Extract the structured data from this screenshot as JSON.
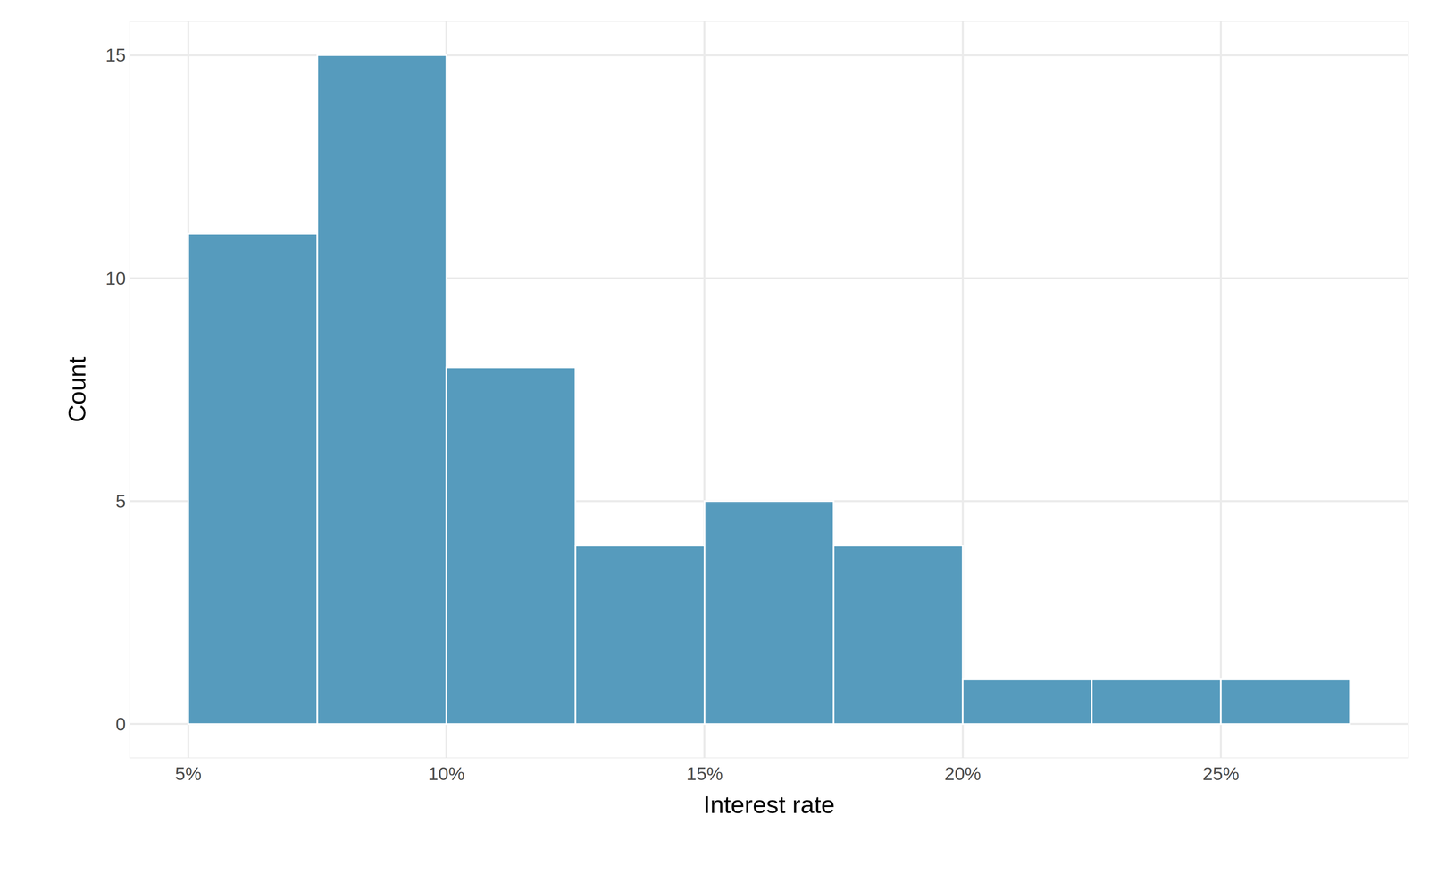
{
  "chart_data": {
    "type": "histogram",
    "bins": [
      5,
      7.5,
      10,
      12.5,
      15,
      17.5,
      20,
      22.5,
      25,
      27.5
    ],
    "values": [
      11,
      15,
      8,
      4,
      5,
      4,
      1,
      1,
      1
    ],
    "color": "#569bbd",
    "x_label": "Interest rate",
    "y_label": "Count",
    "xlim": [
      3.875,
      28.625
    ],
    "xticks": [
      {
        "value": 5,
        "label": "5%"
      },
      {
        "value": 10,
        "label": "10%"
      },
      {
        "value": 15,
        "label": "15%"
      },
      {
        "value": 20,
        "label": "20%"
      },
      {
        "value": 25,
        "label": "25%"
      }
    ],
    "ylim": [
      -0.75,
      15.75
    ],
    "yticks": [
      0,
      5,
      10,
      15
    ],
    "grid": true
  }
}
